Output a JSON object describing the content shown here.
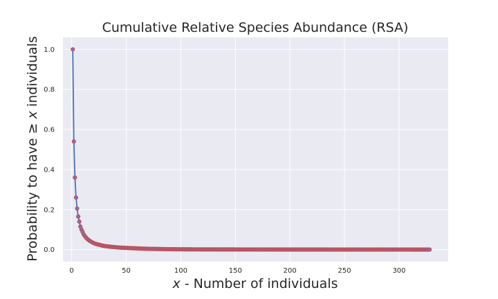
{
  "chart_data": {
    "type": "scatter",
    "title": "Cumulative Relative Species Abundance (RSA)",
    "xlabel_math": "x",
    "xlabel_text": " - Number of individuals",
    "ylabel_text": "Probability to have ",
    "ylabel_symbol": "≥",
    "ylabel_math": "x",
    "ylabel_tail": " individuals",
    "xlim": [
      -8,
      345
    ],
    "ylim": [
      -0.06,
      1.06
    ],
    "xticks": [
      0,
      50,
      100,
      150,
      200,
      250,
      300
    ],
    "xtick_labels": [
      "0",
      "50",
      "100",
      "150",
      "200",
      "250",
      "300"
    ],
    "yticks": [
      0.0,
      0.2,
      0.4,
      0.6,
      0.8,
      1.0
    ],
    "ytick_labels": [
      "0.0",
      "0.2",
      "0.4",
      "0.6",
      "0.8",
      "1.0"
    ],
    "grid": true,
    "style": {
      "background": "#eaeaf2",
      "grid_color": "#ffffff",
      "line_color": "#4c72b0",
      "marker_face": "#8172b2",
      "marker_edge": "#c44e52"
    },
    "x": [
      1,
      2,
      3,
      4,
      5,
      6,
      7,
      8,
      9,
      10,
      11,
      12,
      13,
      14,
      15,
      16,
      17,
      18,
      19,
      20,
      22,
      24,
      26,
      28,
      30,
      33,
      36,
      40,
      44,
      48,
      52,
      56,
      60,
      65,
      70,
      75,
      80,
      85,
      90,
      100,
      110,
      120,
      130,
      140,
      150,
      160,
      170,
      180,
      190,
      200,
      210,
      220,
      230,
      240,
      250,
      260,
      270,
      280,
      290,
      300,
      310,
      320,
      328
    ],
    "y": [
      1.0,
      0.54,
      0.36,
      0.26,
      0.205,
      0.165,
      0.14,
      0.115,
      0.1,
      0.088,
      0.076,
      0.068,
      0.061,
      0.055,
      0.05,
      0.046,
      0.042,
      0.039,
      0.036,
      0.033,
      0.029,
      0.026,
      0.023,
      0.02,
      0.018,
      0.016,
      0.014,
      0.012,
      0.01,
      0.009,
      0.008,
      0.007,
      0.006,
      0.005,
      0.004,
      0.0035,
      0.003,
      0.0025,
      0.002,
      0.0015,
      0.0012,
      0.001,
      0.001,
      0.0008,
      0.0008,
      0.0007,
      0.0006,
      0.0006,
      0.0005,
      0.0005,
      0.0004,
      0.0004,
      0.0004,
      0.0003,
      0.0003,
      0.0003,
      0.0003,
      0.0002,
      0.0002,
      0.0002,
      0.0002,
      0.0001,
      0.0001
    ]
  }
}
